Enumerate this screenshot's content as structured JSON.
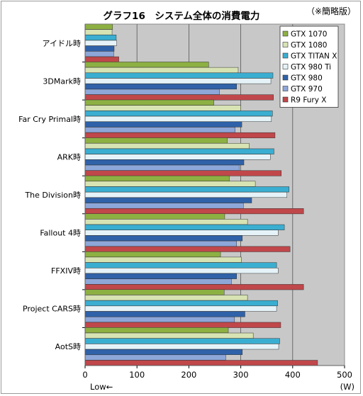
{
  "title": "グラフ16　システム全体の消費電力",
  "note": "（※簡略版）",
  "chart_data": {
    "type": "bar",
    "orientation": "horizontal",
    "categories": [
      "アイドル時",
      "3DMark時",
      "Far Cry Primal時",
      "ARK時",
      "The Division時",
      "Fallout 4時",
      "FFXIV時",
      "Project CARS時",
      "AotS時"
    ],
    "series": [
      {
        "name": "GTX 1070",
        "color": "#8db043",
        "values": [
          53,
          238,
          248,
          274,
          278,
          269,
          261,
          268,
          276
        ]
      },
      {
        "name": "GTX 1080",
        "color": "#d7e3b3",
        "values": [
          52,
          295,
          300,
          316,
          328,
          313,
          301,
          313,
          324
        ]
      },
      {
        "name": "GTX TITAN X",
        "color": "#3aaed1",
        "values": [
          60,
          362,
          361,
          364,
          393,
          384,
          369,
          371,
          375
        ]
      },
      {
        "name": "GTX 980 Ti",
        "color": "#e5f3f8",
        "values": [
          61,
          358,
          359,
          357,
          389,
          372,
          372,
          369,
          373
        ]
      },
      {
        "name": "GTX 980",
        "color": "#2f62a8",
        "values": [
          56,
          292,
          302,
          306,
          321,
          303,
          292,
          308,
          303
        ]
      },
      {
        "name": "GTX 970",
        "color": "#8ea7d9",
        "values": [
          55,
          259,
          289,
          297,
          305,
          292,
          282,
          288,
          271
        ]
      },
      {
        "name": "R9 Fury X",
        "color": "#c0474a",
        "values": [
          65,
          363,
          366,
          378,
          421,
          395,
          421,
          377,
          448
        ]
      }
    ],
    "xlim": [
      0,
      500
    ],
    "xticks": [
      0,
      100,
      200,
      300,
      400,
      500
    ],
    "xlabel_left": "Low←",
    "xlabel_right": "(W)",
    "grid": true,
    "legend_position": "top-right"
  }
}
